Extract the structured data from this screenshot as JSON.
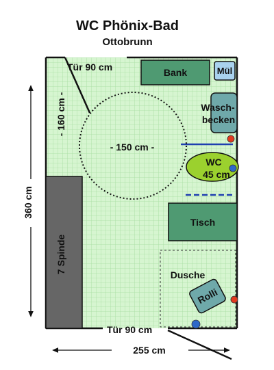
{
  "title": "WC Phönix-Bad",
  "subtitle": "Ottobrunn",
  "labels": {
    "door_top": "Tür 90 cm",
    "door_bottom": "Tür 90 cm",
    "bench": "Bank",
    "bin": "Mül",
    "sink_line1": "Wasch-",
    "sink_line2": "becken",
    "turning_circle": "- 150 cm -",
    "wc_line1": "WC",
    "wc_line2": "45 cm",
    "table": "Tisch",
    "shower": "Dusche",
    "wheelchair": "Rolli",
    "lockers": "7 Spinde",
    "dim_vertical": "360 cm",
    "dim_horizontal": "255 cm",
    "dim_door_swing": "- 160 cm -"
  },
  "colors": {
    "floor": "#d6f5d0",
    "grid": "#a6dda0",
    "furniture": "#4f9a72",
    "bin": "#a9d2ee",
    "sink": "#6fa9aa",
    "wc": "#9bd12e",
    "lockers": "#666666",
    "grab_bar": "#1f3fb0",
    "red_dot": "#e23a1f",
    "blue_dot": "#2d68c8"
  }
}
